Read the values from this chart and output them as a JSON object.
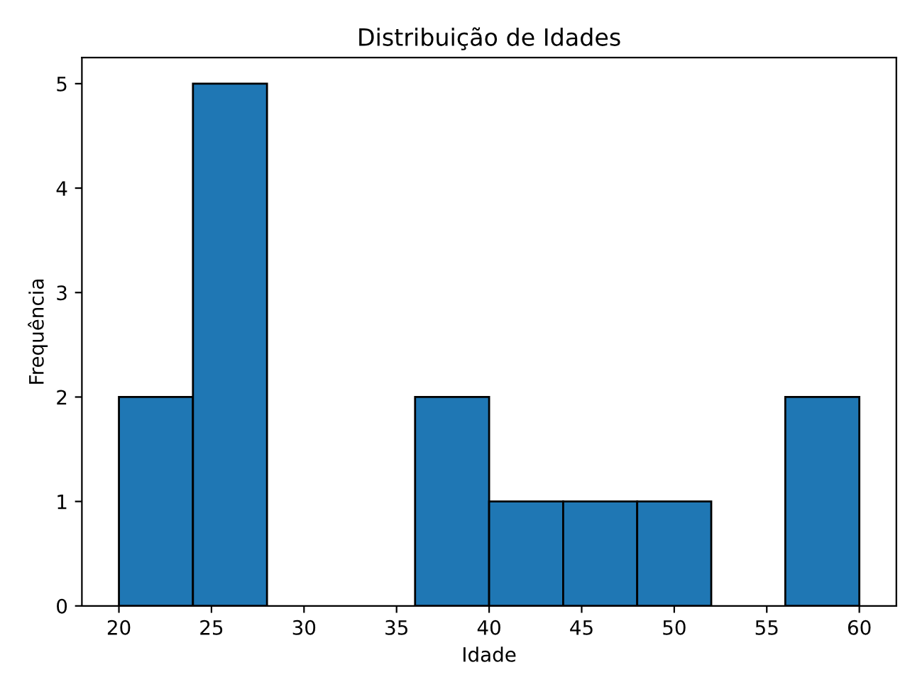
{
  "chart_data": {
    "type": "histogram",
    "title": "Distribuição de Idades",
    "xlabel": "Idade",
    "ylabel": "Frequência",
    "bins": [
      20,
      24,
      28,
      32,
      36,
      40,
      44,
      48,
      52,
      56,
      60
    ],
    "values": [
      2,
      5,
      0,
      0,
      2,
      1,
      1,
      1,
      0,
      2
    ],
    "color": "#1f77b4",
    "xlim": [
      18,
      62
    ],
    "xticks": [
      20,
      25,
      30,
      35,
      40,
      45,
      50,
      55,
      60
    ],
    "ylim": [
      0,
      5.25
    ],
    "yticks": [
      0,
      1,
      2,
      3,
      4,
      5
    ],
    "grid": false,
    "legend": false
  }
}
